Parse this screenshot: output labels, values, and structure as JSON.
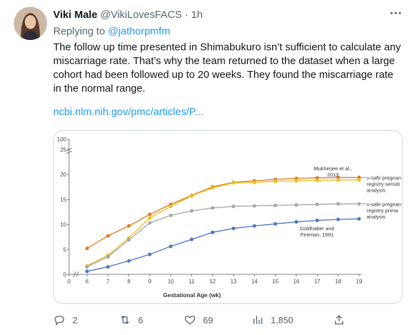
{
  "tweet": {
    "author_name": "Viki Male",
    "author_handle": "@VikiLovesFACS",
    "separator": "·",
    "time": "1h",
    "more_icon": "more-horizontal-icon",
    "replying_prefix": "Replying to",
    "replying_to": "@jathorpmfm",
    "text": "The follow up time presented in Shimabukuro isn’t sufficient to calculate any miscarriage rate. That’s why the team returned to the dataset when a large cohort had been followed up to 20 weeks. They found the miscarriage rate in the normal range.",
    "link_text": "ncbi.nlm.nih.gov/pmc/articles/P..."
  },
  "actions": {
    "reply_count": "2",
    "retweet_count": "6",
    "like_count": "69",
    "views_count": "1,850"
  },
  "chart_data": {
    "type": "line",
    "xlabel": "Gestational Age (wk)",
    "x_ticks": [
      0,
      6,
      7,
      8,
      9,
      10,
      11,
      12,
      13,
      14,
      15,
      16,
      17,
      18,
      19
    ],
    "y_ticks": [
      0,
      5,
      10,
      15,
      20,
      25,
      100
    ],
    "y_axis_break": true,
    "x_axis_break": true,
    "colors": {
      "orange": "#e07b1f",
      "yellow": "#e8c31c",
      "gray": "#a8a8a8",
      "blue": "#4f78c2"
    },
    "series": [
      {
        "key": "orange",
        "x": [
          6,
          7,
          8,
          9,
          10,
          11,
          12,
          13,
          14,
          15,
          16,
          17,
          18,
          19
        ],
        "values": [
          5.2,
          7.7,
          9.7,
          12.0,
          14.0,
          15.8,
          17.5,
          18.4,
          18.7,
          19.0,
          19.2,
          19.3,
          19.4,
          19.4
        ]
      },
      {
        "key": "yellow",
        "x": [
          6,
          7,
          8,
          9,
          10,
          11,
          12,
          13,
          14,
          15,
          16,
          17,
          18,
          19
        ],
        "values": [
          1.7,
          3.8,
          7.3,
          11.3,
          13.6,
          15.7,
          17.3,
          18.3,
          18.4,
          18.6,
          18.7,
          18.8,
          18.9,
          18.9
        ]
      },
      {
        "key": "gray",
        "x": [
          6,
          7,
          8,
          9,
          10,
          11,
          12,
          13,
          14,
          15,
          16,
          17,
          18,
          19
        ],
        "values": [
          1.5,
          3.5,
          6.9,
          10.3,
          11.8,
          12.7,
          13.3,
          13.6,
          13.7,
          13.8,
          13.9,
          14.0,
          14.1,
          14.1
        ]
      },
      {
        "key": "blue",
        "x": [
          6,
          7,
          8,
          9,
          10,
          11,
          12,
          13,
          14,
          15,
          16,
          17,
          18,
          19
        ],
        "values": [
          0.6,
          1.5,
          2.7,
          4.0,
          5.6,
          7.0,
          8.4,
          9.2,
          9.7,
          10.1,
          10.5,
          10.8,
          11.0,
          11.1
        ]
      }
    ],
    "annotations": {
      "mukherjee": [
        "Mukherjee et al.,",
        "2013"
      ],
      "vsafe_sensitivity": [
        "v-safe pregnan",
        "registry sensiti",
        "analysis"
      ],
      "vsafe_primary": [
        "v-safe pregnan",
        "registry prima",
        "analysis"
      ],
      "goldhaber": [
        "Goldhaber and",
        "Fireman, 1991"
      ]
    }
  }
}
